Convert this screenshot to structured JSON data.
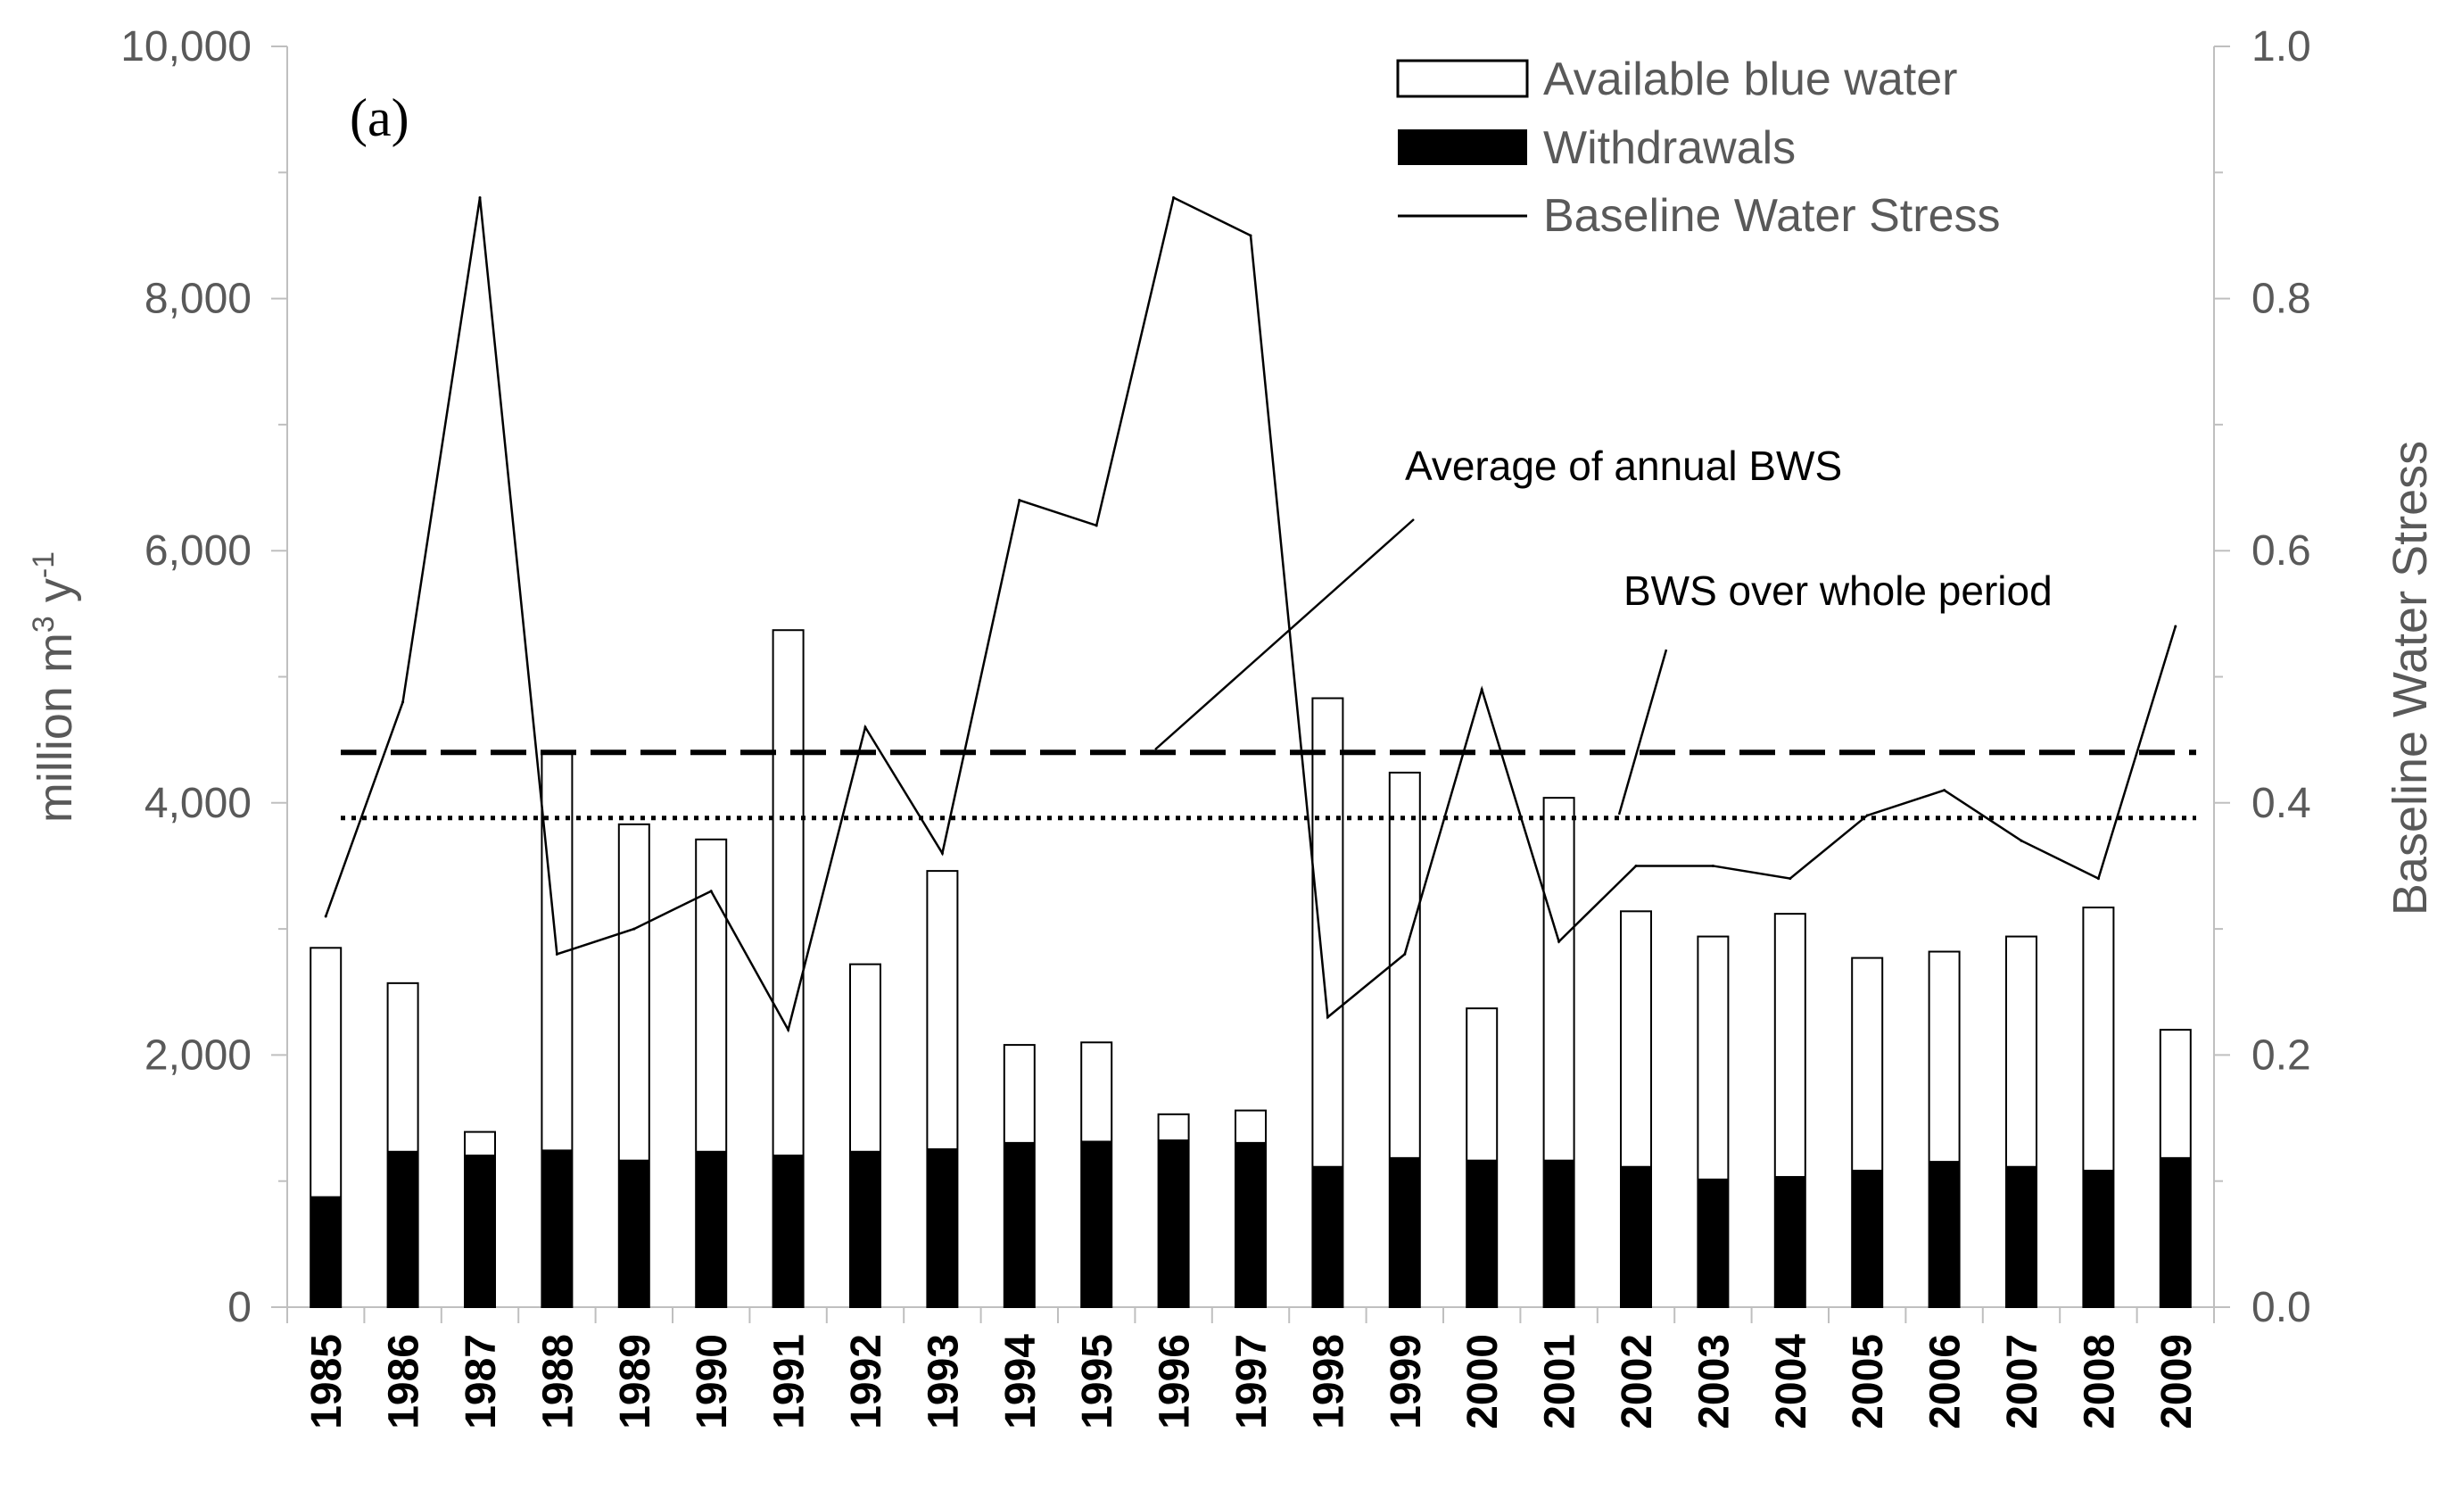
{
  "chart_data": {
    "type": "bar",
    "panel_label": "(a)",
    "categories": [
      "1985",
      "1986",
      "1987",
      "1988",
      "1989",
      "1990",
      "1991",
      "1992",
      "1993",
      "1994",
      "1995",
      "1996",
      "1997",
      "1998",
      "1999",
      "2000",
      "2001",
      "2002",
      "2003",
      "2004",
      "2005",
      "2006",
      "2007",
      "2008",
      "2009"
    ],
    "series": [
      {
        "name": "Available blue water",
        "type": "bar",
        "axis": "left",
        "fill": "#ffffff",
        "values": [
          2850,
          2570,
          1390,
          4400,
          3830,
          3710,
          5370,
          2720,
          3460,
          2080,
          2100,
          1530,
          1560,
          4830,
          4240,
          2370,
          4040,
          3140,
          2940,
          3120,
          2770,
          2820,
          2940,
          3170,
          2200
        ]
      },
      {
        "name": "Withdrawals",
        "type": "bar",
        "axis": "left",
        "fill": "#000000",
        "values": [
          880,
          1240,
          1210,
          1250,
          1170,
          1240,
          1210,
          1240,
          1260,
          1310,
          1320,
          1330,
          1310,
          1120,
          1190,
          1170,
          1170,
          1120,
          1020,
          1040,
          1090,
          1160,
          1120,
          1090,
          1190
        ]
      },
      {
        "name": "Baseline Water Stress",
        "type": "line",
        "axis": "right",
        "color": "#000000",
        "values": [
          0.31,
          0.48,
          0.88,
          0.28,
          0.3,
          0.33,
          0.22,
          0.46,
          0.36,
          0.64,
          0.62,
          0.88,
          0.85,
          0.23,
          0.28,
          0.49,
          0.29,
          0.35,
          0.35,
          0.34,
          0.39,
          0.41,
          0.37,
          0.34,
          0.54
        ]
      }
    ],
    "reference_lines": [
      {
        "name": "Average of annual BWS",
        "style": "dashed",
        "value_right_axis": 0.44
      },
      {
        "name": "BWS over whole period",
        "style": "dotted",
        "value_right_axis": 0.388
      }
    ],
    "y_left": {
      "label_main": "million m",
      "label_sup1": "3",
      "label_mid": " y",
      "label_sup2": "-1",
      "range": [
        0,
        10000
      ],
      "ticks": [
        "0",
        "2,000",
        "4,000",
        "6,000",
        "8,000",
        "10,000"
      ],
      "tick_values": [
        0,
        2000,
        4000,
        6000,
        8000,
        10000
      ]
    },
    "y_right": {
      "label": "Baseline Water Stress",
      "range": [
        0,
        1
      ],
      "ticks": [
        "0.0",
        "0.2",
        "0.4",
        "0.6",
        "0.8",
        "1.0"
      ],
      "tick_values": [
        0,
        0.2,
        0.4,
        0.6,
        0.8,
        1.0
      ]
    },
    "legend": {
      "position": "top-right",
      "items": [
        "Available blue water",
        "Withdrawals",
        "Baseline Water Stress"
      ]
    },
    "annotations": [
      "Average of annual BWS",
      "BWS over whole period"
    ]
  }
}
